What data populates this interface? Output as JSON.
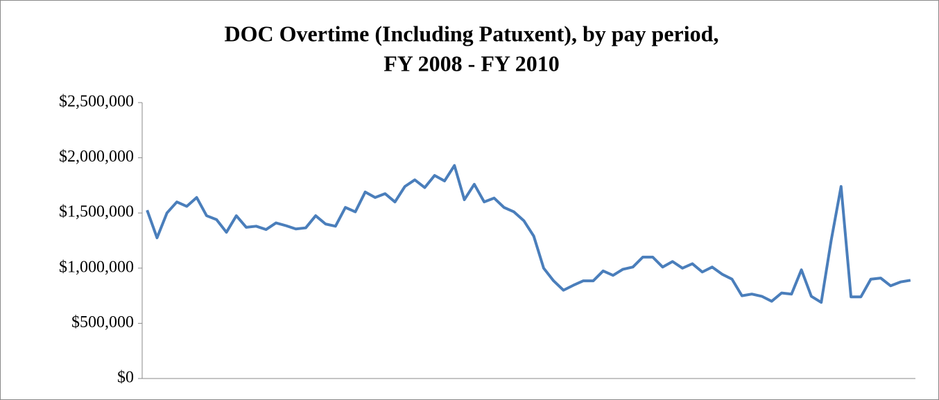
{
  "chart_data": {
    "type": "line",
    "title": [
      "DOC Overtime (Including Patuxent), by pay period,",
      "FY 2008 - FY 2010"
    ],
    "categories": [
      null,
      null,
      null,
      null,
      null,
      null,
      null,
      null,
      null,
      null,
      null,
      null,
      null,
      null,
      null,
      null,
      null,
      null,
      null,
      null,
      null,
      null,
      null,
      null,
      null,
      null,
      null,
      null,
      null,
      null,
      null,
      null,
      null,
      null,
      null,
      null,
      null,
      null,
      null,
      null,
      null,
      null,
      null,
      null,
      null,
      null,
      null,
      null,
      null,
      null,
      null,
      null,
      null,
      null,
      null,
      null,
      null,
      null,
      null,
      null,
      null,
      null,
      null,
      null,
      null,
      null,
      null,
      null,
      null,
      null,
      null,
      null,
      null,
      null,
      null,
      null,
      null,
      null
    ],
    "series": [
      {
        "name": "DOC Overtime",
        "color": "#4a7ebb",
        "values": [
          1525000,
          1275000,
          1500000,
          1600000,
          1560000,
          1640000,
          1475000,
          1440000,
          1325000,
          1475000,
          1370000,
          1380000,
          1350000,
          1410000,
          1385000,
          1355000,
          1365000,
          1475000,
          1400000,
          1380000,
          1550000,
          1510000,
          1690000,
          1640000,
          1675000,
          1600000,
          1740000,
          1800000,
          1730000,
          1840000,
          1790000,
          1930000,
          1620000,
          1760000,
          1600000,
          1635000,
          1550000,
          1510000,
          1430000,
          1290000,
          1000000,
          885000,
          800000,
          845000,
          885000,
          885000,
          975000,
          935000,
          990000,
          1010000,
          1100000,
          1100000,
          1010000,
          1060000,
          1000000,
          1040000,
          965000,
          1010000,
          945000,
          900000,
          750000,
          765000,
          745000,
          700000,
          775000,
          765000,
          985000,
          745000,
          690000,
          1250000,
          1740000,
          740000,
          740000,
          900000,
          910000,
          840000,
          875000,
          890000
        ]
      }
    ],
    "ylim": [
      0,
      2500000
    ],
    "yticks": [
      {
        "value": 0,
        "label": "$0"
      },
      {
        "value": 500000,
        "label": "$500,000"
      },
      {
        "value": 1000000,
        "label": "$1,000,000"
      },
      {
        "value": 1500000,
        "label": "$1,500,000"
      },
      {
        "value": 2000000,
        "label": "$2,000,000"
      },
      {
        "value": 2500000,
        "label": "$2,500,000"
      }
    ],
    "grid": false
  }
}
